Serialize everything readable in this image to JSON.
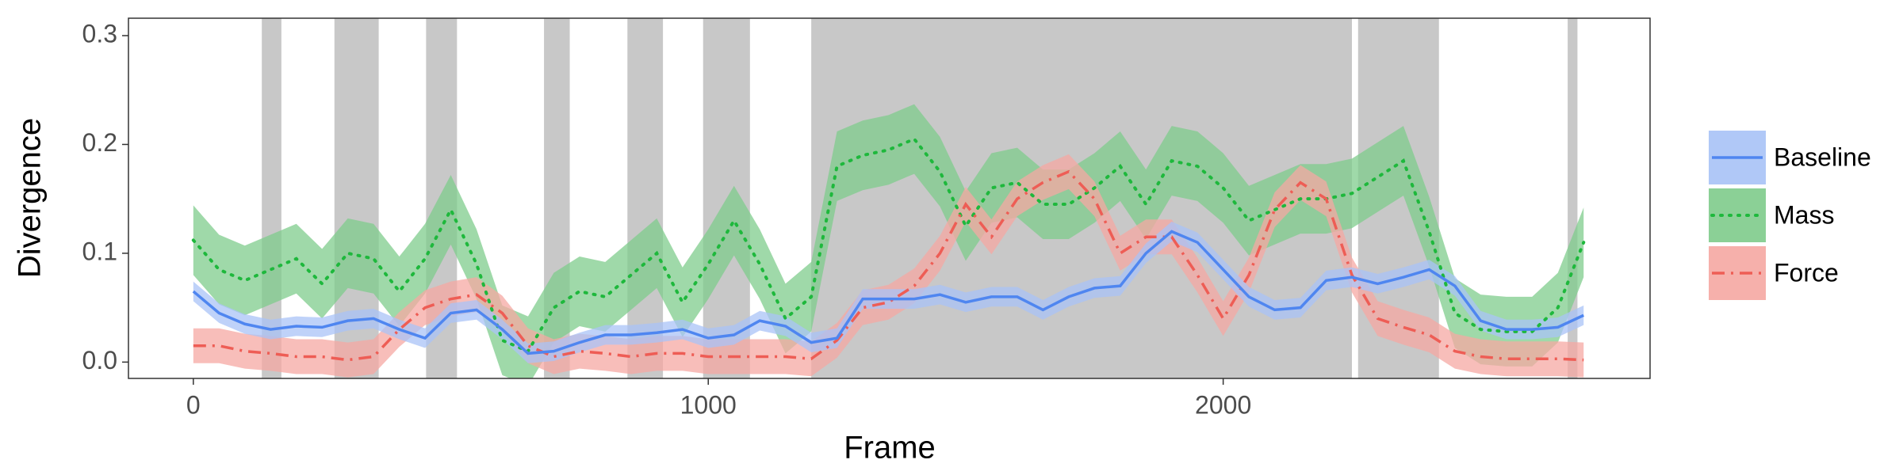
{
  "chart_data": {
    "type": "line",
    "xlabel": "Frame",
    "ylabel": "Divergence",
    "x": [
      0,
      50,
      100,
      150,
      200,
      250,
      300,
      350,
      400,
      450,
      500,
      550,
      600,
      650,
      700,
      750,
      800,
      850,
      900,
      950,
      1000,
      1050,
      1100,
      1150,
      1200,
      1250,
      1300,
      1350,
      1400,
      1450,
      1500,
      1550,
      1600,
      1650,
      1700,
      1750,
      1800,
      1850,
      1900,
      1950,
      2000,
      2050,
      2100,
      2150,
      2200,
      2250,
      2300,
      2350,
      2400,
      2450,
      2500,
      2550,
      2600,
      2650,
      2700
    ],
    "series": [
      {
        "name": "Baseline",
        "color": "#4f86f0",
        "band_color": "#a9c3f7",
        "dash": "solid",
        "error": 0.009,
        "values": [
          0.065,
          0.045,
          0.035,
          0.03,
          0.033,
          0.032,
          0.038,
          0.04,
          0.03,
          0.022,
          0.045,
          0.048,
          0.03,
          0.008,
          0.01,
          0.018,
          0.025,
          0.025,
          0.027,
          0.03,
          0.022,
          0.025,
          0.038,
          0.033,
          0.018,
          0.022,
          0.058,
          0.058,
          0.058,
          0.062,
          0.055,
          0.06,
          0.06,
          0.048,
          0.06,
          0.068,
          0.07,
          0.1,
          0.12,
          0.11,
          0.085,
          0.06,
          0.048,
          0.05,
          0.075,
          0.078,
          0.072,
          0.078,
          0.085,
          0.07,
          0.038,
          0.03,
          0.03,
          0.032,
          0.043
        ]
      },
      {
        "name": "Mass",
        "color": "#1eb83c",
        "band_color": "#7fcc8c",
        "dash": "dotted",
        "error": 0.032,
        "values": [
          0.112,
          0.085,
          0.075,
          0.085,
          0.095,
          0.072,
          0.1,
          0.095,
          0.065,
          0.095,
          0.14,
          0.09,
          0.02,
          0.01,
          0.05,
          0.065,
          0.06,
          0.08,
          0.1,
          0.055,
          0.09,
          0.13,
          0.09,
          0.04,
          0.06,
          0.18,
          0.19,
          0.195,
          0.205,
          0.175,
          0.125,
          0.16,
          0.165,
          0.145,
          0.145,
          0.16,
          0.18,
          0.145,
          0.185,
          0.18,
          0.16,
          0.13,
          0.14,
          0.15,
          0.15,
          0.155,
          0.17,
          0.185,
          0.12,
          0.045,
          0.03,
          0.028,
          0.028,
          0.05,
          0.11
        ]
      },
      {
        "name": "Force",
        "color": "#ee5d55",
        "band_color": "#f6a8a3",
        "dash": "dashdot",
        "error": 0.016,
        "values": [
          0.015,
          0.015,
          0.01,
          0.008,
          0.005,
          0.005,
          0.002,
          0.005,
          0.03,
          0.05,
          0.058,
          0.062,
          0.045,
          0.015,
          0.005,
          0.01,
          0.008,
          0.005,
          0.008,
          0.008,
          0.005,
          0.005,
          0.005,
          0.005,
          0.003,
          0.02,
          0.05,
          0.055,
          0.07,
          0.1,
          0.145,
          0.115,
          0.15,
          0.165,
          0.175,
          0.15,
          0.1,
          0.115,
          0.115,
          0.08,
          0.04,
          0.08,
          0.14,
          0.165,
          0.15,
          0.08,
          0.04,
          0.032,
          0.025,
          0.01,
          0.005,
          0.003,
          0.003,
          0.003,
          0.002
        ]
      }
    ],
    "shaded_regions": [
      [
        133,
        171
      ],
      [
        274,
        360
      ],
      [
        452,
        512
      ],
      [
        681,
        731
      ],
      [
        843,
        912
      ],
      [
        990,
        1081
      ],
      [
        1200,
        2250
      ],
      [
        2262,
        2419
      ],
      [
        2669,
        2688
      ]
    ],
    "shade_color": "#c8c8c8",
    "xlim": [
      -126,
      2829
    ],
    "xticks": [
      0,
      1000,
      2000
    ],
    "ylim": [
      -0.015,
      0.316
    ],
    "yticks": [
      {
        "value": 0,
        "label": "0.0"
      },
      0.1,
      0.2,
      0.3
    ],
    "legend": "right"
  }
}
